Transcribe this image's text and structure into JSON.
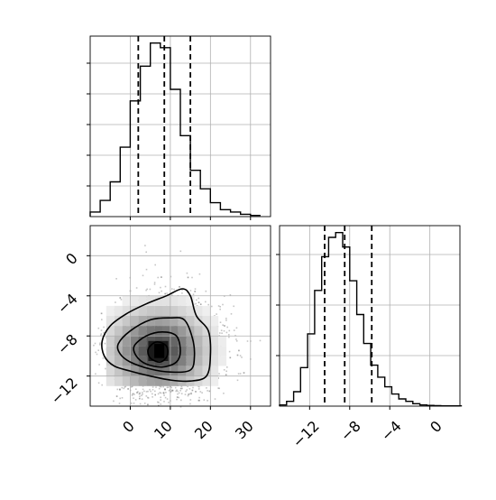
{
  "chart_data": [
    {
      "panel": "histogram-param-1",
      "type": "step-histogram",
      "xlim": [
        -10,
        35
      ],
      "bins": [
        [
          -10,
          2
        ],
        [
          -7.5,
          7
        ],
        [
          -5,
          15
        ],
        [
          -2.5,
          30
        ],
        [
          0,
          50
        ],
        [
          2.5,
          65
        ],
        [
          5,
          75
        ],
        [
          7.5,
          73
        ],
        [
          10,
          55
        ],
        [
          12.5,
          35
        ],
        [
          15,
          20
        ],
        [
          17.5,
          12
        ],
        [
          20,
          6
        ],
        [
          22.5,
          3
        ],
        [
          25,
          2
        ],
        [
          27.5,
          1
        ],
        [
          30,
          0.5
        ]
      ],
      "quantiles": [
        2,
        8.5,
        15
      ],
      "grid": true
    },
    {
      "panel": "histogram-param-2",
      "type": "step-histogram",
      "xlim": [
        -15,
        3
      ],
      "bins": [
        [
          -15,
          0.5
        ],
        [
          -14.3,
          2
        ],
        [
          -13.6,
          6
        ],
        [
          -12.9,
          16
        ],
        [
          -12.2,
          30
        ],
        [
          -11.5,
          48
        ],
        [
          -10.8,
          62
        ],
        [
          -10.1,
          70
        ],
        [
          -9.4,
          72
        ],
        [
          -8.7,
          66
        ],
        [
          -8,
          52
        ],
        [
          -7.3,
          38
        ],
        [
          -6.6,
          26
        ],
        [
          -5.9,
          17
        ],
        [
          -5.2,
          12
        ],
        [
          -4.5,
          8
        ],
        [
          -3.8,
          5
        ],
        [
          -3.1,
          3
        ],
        [
          -2.4,
          2
        ],
        [
          -1.7,
          1
        ],
        [
          -1,
          0.5
        ],
        [
          -0.3,
          0.3
        ],
        [
          0.4,
          0.2
        ],
        [
          1.1,
          0.1
        ],
        [
          1.8,
          0.1
        ],
        [
          2.5,
          0.1
        ]
      ],
      "quantiles": [
        -10.5,
        -8.5,
        -5.8
      ],
      "xticks": [
        -12,
        -8,
        -4,
        0
      ],
      "grid": true
    },
    {
      "panel": "2d-density",
      "type": "heatmap",
      "xlim": [
        -10,
        35
      ],
      "ylim": [
        -15,
        3
      ],
      "center": [
        7,
        -9.5
      ],
      "xticks": [
        0,
        10,
        20,
        30
      ],
      "yticks": [
        0,
        -4,
        -8,
        -12
      ],
      "contours": [
        {
          "level": 1,
          "points": [
            [
              -7,
              -8.5
            ],
            [
              -5,
              -7
            ],
            [
              -1,
              -5.8
            ],
            [
              4,
              -4.8
            ],
            [
              9,
              -4
            ],
            [
              13,
              -3.3
            ],
            [
              15,
              -4
            ],
            [
              16.5,
              -6
            ],
            [
              19.5,
              -7.5
            ],
            [
              20,
              -10
            ],
            [
              19,
              -12
            ],
            [
              15,
              -12.5
            ],
            [
              10,
              -12.4
            ],
            [
              5,
              -12
            ],
            [
              0,
              -11.5
            ],
            [
              -4,
              -11
            ],
            [
              -6.5,
              -10
            ]
          ]
        },
        {
          "level": 2,
          "points": [
            [
              -3,
              -8.8
            ],
            [
              0,
              -7.5
            ],
            [
              5,
              -6.4
            ],
            [
              10,
              -6.2
            ],
            [
              13.5,
              -6.4
            ],
            [
              15.5,
              -8.2
            ],
            [
              16,
              -10
            ],
            [
              15,
              -11.4
            ],
            [
              10,
              -11.6
            ],
            [
              5,
              -11.3
            ],
            [
              0,
              -10.6
            ],
            [
              -2.5,
              -9.8
            ]
          ]
        },
        {
          "level": 3,
          "points": [
            [
              1,
              -9
            ],
            [
              4,
              -8
            ],
            [
              8,
              -7.6
            ],
            [
              11.5,
              -8
            ],
            [
              12.5,
              -9.5
            ],
            [
              11.5,
              -10.6
            ],
            [
              8,
              -11.1
            ],
            [
              4,
              -10.8
            ],
            [
              1.5,
              -10
            ]
          ]
        },
        {
          "level": 4,
          "points": [
            [
              4.5,
              -9.3
            ],
            [
              6.5,
              -8.6
            ],
            [
              9,
              -9
            ],
            [
              9.2,
              -10
            ],
            [
              7.5,
              -10.6
            ],
            [
              5,
              -10.2
            ]
          ]
        }
      ],
      "core": {
        "x": [
          4.5,
          9.5
        ],
        "y": [
          -10.5,
          -8.5
        ]
      },
      "grid": true
    }
  ],
  "ticks": {
    "x_bottom": [
      "0",
      "10",
      "20",
      "30"
    ],
    "y_left": [
      "0",
      "−4",
      "−8",
      "−12"
    ],
    "x_right": [
      "−12",
      "−8",
      "−4",
      "0"
    ]
  },
  "colors": {
    "line": "#000000",
    "grid": "#b0b0b0",
    "points": "#808080"
  }
}
